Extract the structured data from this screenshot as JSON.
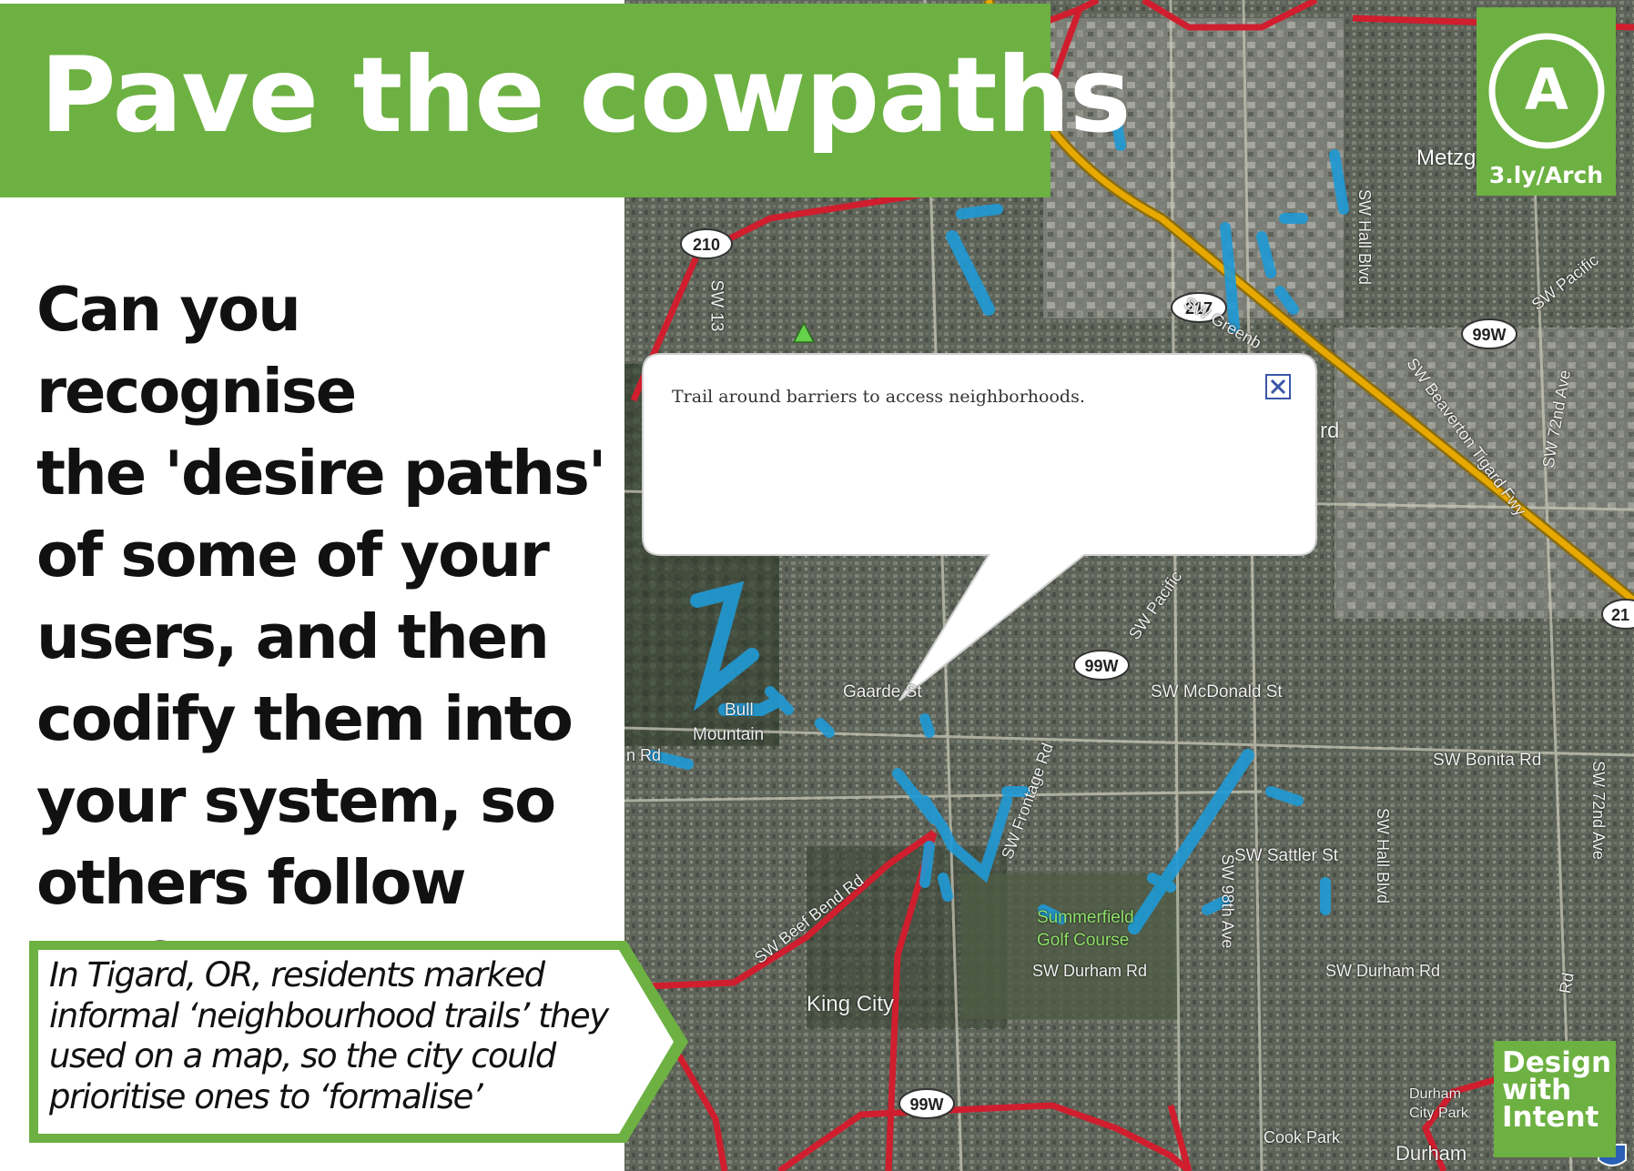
{
  "slide": {
    "title": "Pave the cowpaths",
    "question_lines": [
      "Can you recognise",
      "the 'desire paths'",
      "of some of your",
      "users, and then",
      "codify them into",
      "your system, so",
      "others follow too?"
    ],
    "caption_lines": [
      "In Tigard, OR, residents marked",
      "informal ‘neighbourhood trails’ they",
      "used on a map, so the city could",
      "prioritise ones to ‘formalise’"
    ],
    "badge_letter": "A",
    "badge_link": "3.ly/Arch",
    "design_with_intent": [
      "Design",
      "with",
      "Intent"
    ]
  },
  "map": {
    "popup_text": "Trail around barriers to access neighborhoods.",
    "labels": {
      "metzger": "Metzg",
      "sw_hall_north": "SW Hall Blvd",
      "sw_greenburg": "SW Greenb",
      "sw_beaverton": "SW Beaverton Tigard Fwy",
      "sw_72nd_north": "SW 72nd Ave",
      "sw_pacific_ne": "SW Pacific",
      "sw_mcdonald": "SW McDonald St",
      "sw_bonita": "SW Bonita Rd",
      "sw_sattler": "SW Sattler St",
      "summerfield_1": "Summerfield",
      "summerfield_2": "Golf Course",
      "sw_durham_w": "SW Durham Rd",
      "sw_durham_e": "SW Durham Rd",
      "king_city": "King City",
      "bull_1": "Bull",
      "bull_2": "Mountain",
      "gaarde": "Gaarde St",
      "sw_frontage": "SW Frontage Rd",
      "sw_98th": "SW 98th Ave",
      "sw_hall_south": "SW Hall Blvd",
      "sw_72nd_south": "SW 72nd Ave",
      "sw_beef_bend": "SW Beef Bend Rd",
      "durham_city_1": "Durham",
      "durham_city_2": "City Park",
      "durham": "Durham",
      "cook_park": "Cook Park",
      "sw_13": "SW 13",
      "sw_pacific_mid": "SW Pacific",
      "rd_left": "n Rd",
      "tigard_rd": "rd",
      "rd_right": "Rd"
    },
    "shields": {
      "or_210": "210",
      "or_217": "217",
      "us_99w_ne": "99W",
      "us_99w_mid": "99W",
      "us_99w_sw": "99W",
      "or_217_edge": "21"
    }
  },
  "colors": {
    "green": "#6db142",
    "highway_red": "#d01e2e",
    "freeway_yellow": "#e7a900",
    "trail_blue": "#1f9ad6",
    "map_bg": "#5c6357"
  }
}
